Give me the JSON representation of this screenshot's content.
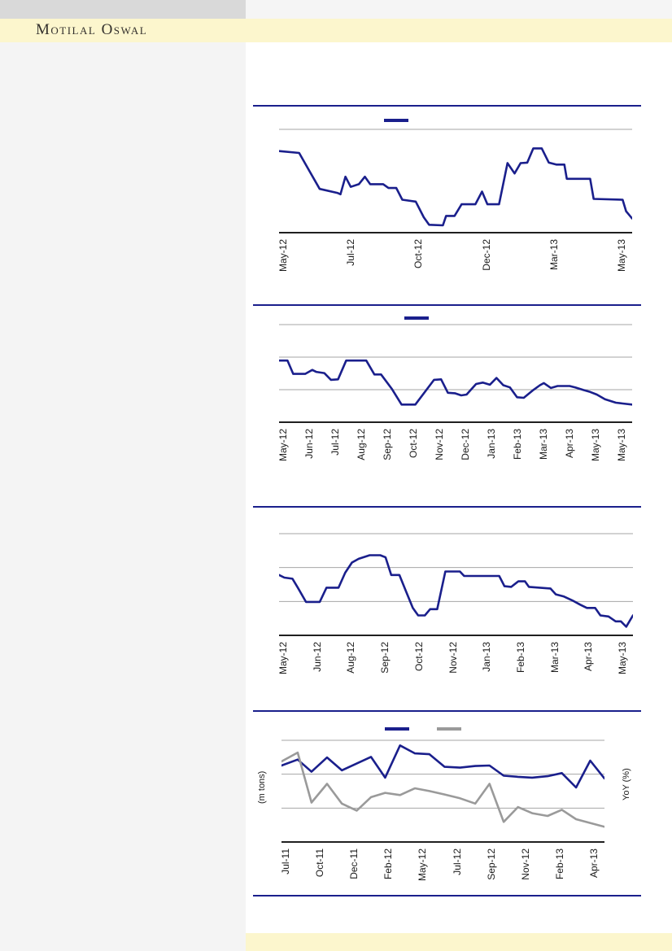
{
  "header": {
    "brand": "Motilal Oswal"
  },
  "colors": {
    "navy": "#1a1f8c",
    "gray": "#9a9a9a",
    "gridline": "#a6a6a6",
    "axis": "#000000",
    "brand_band": "#fcf6cd",
    "sidebar": "#f4f4f4",
    "top_strip": "#d9d9d9"
  },
  "chart_data": [
    {
      "type": "line",
      "title": "",
      "note": "Title, legend text and y-axis values are not visible in the source; y values are relative (0 = x-axis, 100 = top gridline).",
      "x_tick_labels": [
        "May-12",
        "Jul-12",
        "Oct-12",
        "Dec-12",
        "Mar-13",
        "May-13"
      ],
      "legend": [
        {
          "label": "",
          "color": "navy"
        }
      ],
      "gridlines_pct": [
        100
      ],
      "ylim": [
        0,
        100
      ],
      "series": [
        {
          "name": "series-1",
          "color": "navy",
          "points": [
            [
              0,
              79
            ],
            [
              5.7,
              77.2
            ],
            [
              11.5,
              42.4
            ],
            [
              16.5,
              38.5
            ],
            [
              17.4,
              37.2
            ],
            [
              18.8,
              54.2
            ],
            [
              20.3,
              44.3
            ],
            [
              22.6,
              46.9
            ],
            [
              24.3,
              54.2
            ],
            [
              25.8,
              46.9
            ],
            [
              29.5,
              46.9
            ],
            [
              31,
              43.2
            ],
            [
              33.2,
              43.2
            ],
            [
              34.9,
              31.9
            ],
            [
              38.7,
              30.1
            ],
            [
              41,
              14.9
            ],
            [
              42.5,
              7.6
            ],
            [
              46.4,
              7.1
            ],
            [
              47.3,
              16.2
            ],
            [
              49.7,
              16.2
            ],
            [
              51.7,
              27.5
            ],
            [
              55.6,
              27.5
            ],
            [
              57.5,
              39.8
            ],
            [
              59,
              27.5
            ],
            [
              62.3,
              27.5
            ],
            [
              64.7,
              67.3
            ],
            [
              66.7,
              57.3
            ],
            [
              68.4,
              67.3
            ],
            [
              70.3,
              67.8
            ],
            [
              72,
              81.6
            ],
            [
              74.4,
              81.6
            ],
            [
              76.4,
              67.8
            ],
            [
              78.5,
              65.9
            ],
            [
              80.8,
              65.9
            ],
            [
              81.5,
              52.1
            ],
            [
              88.1,
              52.1
            ],
            [
              89.1,
              32.7
            ],
            [
              97.3,
              31.9
            ],
            [
              98.3,
              20.7
            ],
            [
              100,
              13.7
            ]
          ]
        }
      ]
    },
    {
      "type": "line",
      "title": "",
      "note": "Title, legend text and y-axis values are not visible in the source; y values are relative (0 = x-axis, 100 = top gridline).",
      "x_tick_labels": [
        "May-12",
        "Jun-12",
        "Jul-12",
        "Aug-12",
        "Sep-12",
        "Oct-12",
        "Nov-12",
        "Dec-12",
        "Jan-13",
        "Feb-13",
        "Mar-13",
        "Apr-13",
        "May-13",
        "May-13"
      ],
      "legend": [
        {
          "label": "",
          "color": "navy"
        }
      ],
      "gridlines_pct": [
        100,
        66.7,
        33.3
      ],
      "ylim": [
        0,
        100
      ],
      "series": [
        {
          "name": "series-1",
          "color": "navy",
          "points": [
            [
              0,
              63.2
            ],
            [
              2.4,
              63.2
            ],
            [
              4,
              49.5
            ],
            [
              7.4,
              49.5
            ],
            [
              9.4,
              53.6
            ],
            [
              10.5,
              51.6
            ],
            [
              12.8,
              50.3
            ],
            [
              14.7,
              43.4
            ],
            [
              16.7,
              43.9
            ],
            [
              19,
              63.2
            ],
            [
              24.7,
              63.2
            ],
            [
              27,
              48.9
            ],
            [
              28.9,
              48.9
            ],
            [
              32,
              33.8
            ],
            [
              34.7,
              18.1
            ],
            [
              38.6,
              18.1
            ],
            [
              43.9,
              43.4
            ],
            [
              45.9,
              43.9
            ],
            [
              47.8,
              30.2
            ],
            [
              49.8,
              29.7
            ],
            [
              51.6,
              27.5
            ],
            [
              53.1,
              28.3
            ],
            [
              55.8,
              39.2
            ],
            [
              57.7,
              40.6
            ],
            [
              59.7,
              38.4
            ],
            [
              61.6,
              45.3
            ],
            [
              63.5,
              37.9
            ],
            [
              65.4,
              35.7
            ],
            [
              67.4,
              25.6
            ],
            [
              69.3,
              25
            ],
            [
              72,
              33
            ],
            [
              73.9,
              37.9
            ],
            [
              75,
              40.1
            ],
            [
              77,
              35.1
            ],
            [
              78.9,
              37.1
            ],
            [
              82.3,
              37.1
            ],
            [
              83.9,
              35.7
            ],
            [
              86.2,
              33
            ],
            [
              88.1,
              31
            ],
            [
              90,
              28.3
            ],
            [
              92.3,
              23.6
            ],
            [
              95.4,
              20
            ],
            [
              97.3,
              19.2
            ],
            [
              100,
              18.1
            ]
          ]
        }
      ]
    },
    {
      "type": "line",
      "title": "",
      "note": "No legend shown. Y-axis values are not visible in the source; y values are relative (0 = x-axis, 100 = top gridline).",
      "x_tick_labels": [
        "May-12",
        "Jun-12",
        "Aug-12",
        "Sep-12",
        "Oct-12",
        "Nov-12",
        "Jan-13",
        "Feb-13",
        "Mar-13",
        "Apr-13",
        "May-13"
      ],
      "legend": [],
      "gridlines_pct": [
        100,
        66.7,
        33.3
      ],
      "ylim": [
        0,
        100
      ],
      "series": [
        {
          "name": "series-1",
          "color": "navy",
          "points": [
            [
              0,
              59.4
            ],
            [
              1.5,
              56.8
            ],
            [
              3.8,
              55.7
            ],
            [
              5.3,
              46.9
            ],
            [
              7.6,
              32.9
            ],
            [
              11.5,
              32.9
            ],
            [
              13.4,
              46.9
            ],
            [
              16.8,
              46.9
            ],
            [
              18.7,
              61.6
            ],
            [
              20.6,
              71.6
            ],
            [
              22.5,
              75.3
            ],
            [
              25.6,
              78.8
            ],
            [
              28.6,
              78.8
            ],
            [
              30.1,
              76.7
            ],
            [
              31.7,
              59.4
            ],
            [
              34,
              59.4
            ],
            [
              35.9,
              43
            ],
            [
              37.8,
              27
            ],
            [
              39.3,
              19.6
            ],
            [
              41.2,
              19.6
            ],
            [
              42.7,
              25.8
            ],
            [
              44.7,
              25.8
            ],
            [
              47,
              62.8
            ],
            [
              48.5,
              62.8
            ],
            [
              51.1,
              62.8
            ],
            [
              52.3,
              58.4
            ],
            [
              62.2,
              58.4
            ],
            [
              63.7,
              48.3
            ],
            [
              65.6,
              47.7
            ],
            [
              67.6,
              53.1
            ],
            [
              69.5,
              53.1
            ],
            [
              70.6,
              47.7
            ],
            [
              76.7,
              46.1
            ],
            [
              78.2,
              40.3
            ],
            [
              80.5,
              38.2
            ],
            [
              82.8,
              34.5
            ],
            [
              85.1,
              30.2
            ],
            [
              87,
              27
            ],
            [
              89.3,
              27
            ],
            [
              90.8,
              19.6
            ],
            [
              93.1,
              18.6
            ],
            [
              95.1,
              13.8
            ],
            [
              96.6,
              13.8
            ],
            [
              98.1,
              8.5
            ],
            [
              100,
              19.6
            ]
          ]
        }
      ]
    },
    {
      "type": "line",
      "title": "",
      "note": "Two series (volume in m tons, left axis; YoY % growth, right axis). Legend text and axis values are not visible in the source; y values are relative (0 = x-axis, 100 = top gridline).",
      "ylabel_left": "(m tons)",
      "ylabel_right": "YoY (%)",
      "x_tick_labels": [
        "Jul-11",
        "Oct-11",
        "Dec-11",
        "Feb-12",
        "May-12",
        "Jul-12",
        "Sep-12",
        "Nov-12",
        "Feb-13",
        "Apr-13"
      ],
      "legend": [
        {
          "label": "",
          "color": "navy"
        },
        {
          "label": "",
          "color": "gray"
        }
      ],
      "gridlines_pct": [
        100,
        66.7,
        33.3
      ],
      "ylim": [
        0,
        100
      ],
      "series": [
        {
          "name": "volume-m-tons",
          "color": "navy",
          "points": [
            [
              0,
              75.2
            ],
            [
              5,
              81
            ],
            [
              9.3,
              69.1
            ],
            [
              14.1,
              83.1
            ],
            [
              18.7,
              70.5
            ],
            [
              27.7,
              83.7
            ],
            [
              32.1,
              63.3
            ],
            [
              36.7,
              95
            ],
            [
              41.3,
              87.1
            ],
            [
              45.8,
              86.3
            ],
            [
              50.5,
              73.9
            ],
            [
              55.3,
              73.1
            ],
            [
              60,
              74.7
            ],
            [
              64.4,
              75.2
            ],
            [
              68.8,
              65.2
            ],
            [
              73.2,
              64.1
            ],
            [
              77.6,
              63.3
            ],
            [
              82.4,
              64.7
            ],
            [
              86.8,
              67.8
            ],
            [
              91.2,
              53.6
            ],
            [
              95.6,
              80
            ],
            [
              100,
              62.5
            ]
          ]
        },
        {
          "name": "yoy-pct",
          "color": "gray",
          "points": [
            [
              0,
              79.2
            ],
            [
              5,
              87.9
            ],
            [
              9.3,
              38.8
            ],
            [
              14.1,
              57.2
            ],
            [
              18.7,
              37.8
            ],
            [
              23.3,
              30.9
            ],
            [
              27.7,
              44.1
            ],
            [
              32.1,
              48.3
            ],
            [
              36.7,
              46.2
            ],
            [
              41.3,
              52.8
            ],
            [
              45.8,
              50.1
            ],
            [
              50.5,
              46.7
            ],
            [
              55.3,
              43
            ],
            [
              60,
              37.8
            ],
            [
              64.4,
              57.2
            ],
            [
              68.8,
              19.8
            ],
            [
              73.2,
              34.3
            ],
            [
              77.6,
              28.3
            ],
            [
              82.4,
              25.6
            ],
            [
              86.8,
              31.7
            ],
            [
              91.2,
              22.4
            ],
            [
              100,
              15
            ]
          ]
        }
      ]
    }
  ]
}
